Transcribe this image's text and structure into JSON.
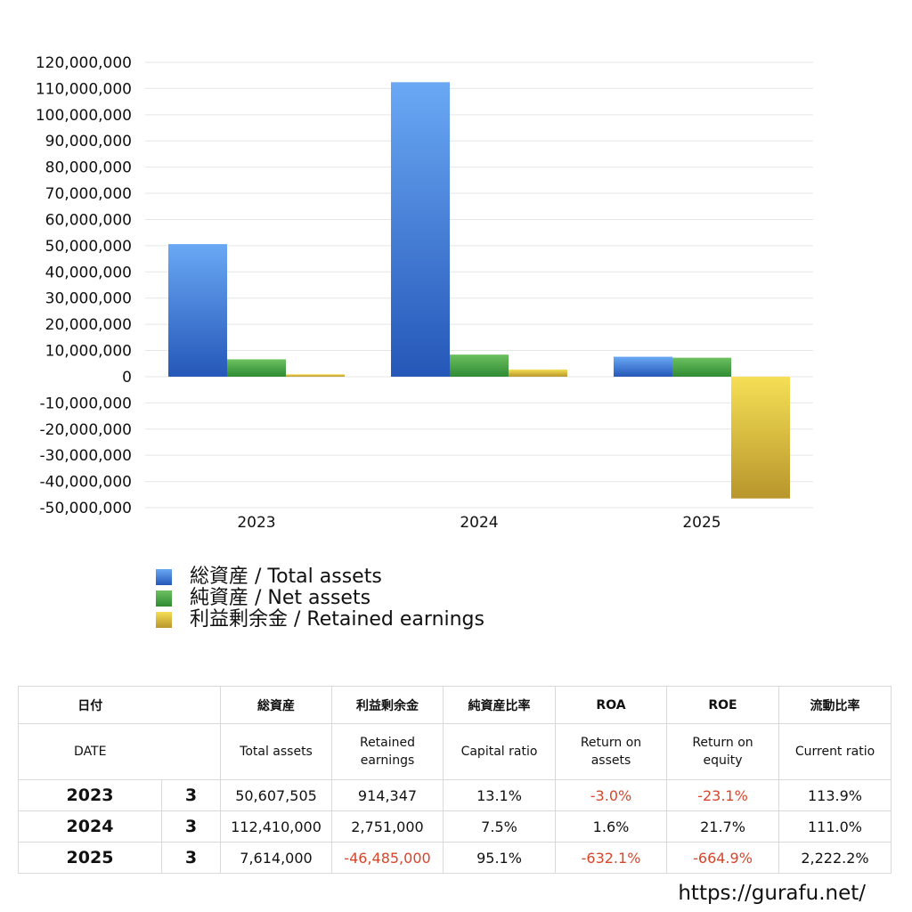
{
  "chart_data": {
    "type": "bar",
    "categories": [
      "2023",
      "2024",
      "2025"
    ],
    "series": [
      {
        "name": "総資産 / Total assets",
        "values": [
          50607505,
          112410000,
          7614000
        ],
        "color_top": "#6aa8f4",
        "color_bottom": "#2557b8"
      },
      {
        "name": "純資産 / Net assets",
        "values": [
          6630000,
          8430000,
          7240000
        ],
        "color_top": "#6cc160",
        "color_bottom": "#2f8a33"
      },
      {
        "name": "利益剰余金 / Retained earnings",
        "values": [
          914347,
          2751000,
          -46485000
        ],
        "color_top": "#f5df55",
        "color_bottom": "#b8962c"
      }
    ],
    "ylim": [
      -50000000,
      120000000
    ],
    "yticks": [
      120000000,
      110000000,
      100000000,
      90000000,
      80000000,
      70000000,
      60000000,
      50000000,
      40000000,
      30000000,
      20000000,
      10000000,
      0,
      -10000000,
      -20000000,
      -30000000,
      -40000000,
      -50000000
    ],
    "ytick_labels": [
      "120,000,000",
      "110,000,000",
      "100,000,000",
      "90,000,000",
      "80,000,000",
      "70,000,000",
      "60,000,000",
      "50,000,000",
      "40,000,000",
      "30,000,000",
      "20,000,000",
      "10,000,000",
      "0",
      "-10,000,000",
      "-20,000,000",
      "-30,000,000",
      "-40,000,000",
      "-50,000,000"
    ],
    "grid": true,
    "legend_position": "bottom-left",
    "title": "",
    "xlabel": "",
    "ylabel": ""
  },
  "table": {
    "header_jp": [
      "日付",
      "",
      "総資産",
      "利益剰余金",
      "純資産比率",
      "ROA",
      "ROE",
      "流動比率"
    ],
    "header_en": [
      "DATE",
      "",
      "Total assets",
      "Retained earnings",
      "Capital ratio",
      "Return on assets",
      "Return on equity",
      "Current ratio"
    ],
    "rows": [
      {
        "year": "2023",
        "month": "3",
        "total_assets": "50,607,505",
        "retained": "914,347",
        "capital_ratio": "13.1%",
        "roa": "-3.0%",
        "roe": "-23.1%",
        "current_ratio": "113.9%"
      },
      {
        "year": "2024",
        "month": "3",
        "total_assets": "112,410,000",
        "retained": "2,751,000",
        "capital_ratio": "7.5%",
        "roa": "1.6%",
        "roe": "21.7%",
        "current_ratio": "111.0%"
      },
      {
        "year": "2025",
        "month": "3",
        "total_assets": "7,614,000",
        "retained": "-46,485,000",
        "capital_ratio": "95.1%",
        "roa": "-632.1%",
        "roe": "-664.9%",
        "current_ratio": "2,222.2%"
      }
    ],
    "negative_color": "#d6462b"
  },
  "site_url": "https://gurafu.net/"
}
